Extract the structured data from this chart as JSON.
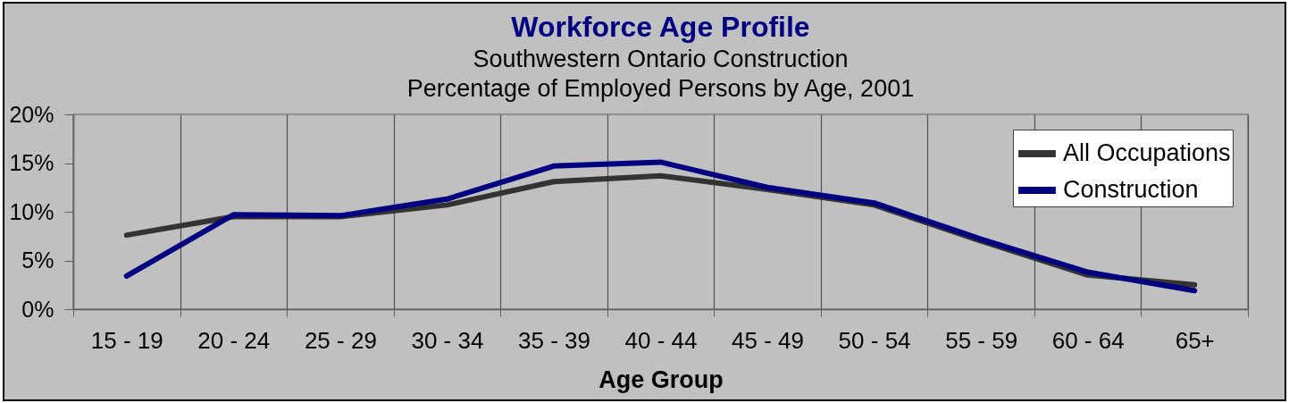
{
  "chart_data": {
    "type": "line",
    "title": "Workforce Age Profile",
    "subtitle": "Southwestern Ontario Construction\nPercentage of Employed Persons by Age, 2001",
    "xlabel": "Age Group",
    "categories": [
      "15 - 19",
      "20 - 24",
      "25 - 29",
      "30 - 34",
      "35 - 39",
      "40 - 44",
      "45 - 49",
      "50 - 54",
      "55 - 59",
      "60 - 64",
      "65+"
    ],
    "series": [
      {
        "name": "All Occupations",
        "color": "#333333",
        "values": [
          7.6,
          9.5,
          9.5,
          10.7,
          13.1,
          13.7,
          12.3,
          10.7,
          7.0,
          3.5,
          2.5
        ]
      },
      {
        "name": "Construction",
        "color": "#000080",
        "values": [
          3.4,
          9.7,
          9.6,
          11.3,
          14.7,
          15.1,
          12.5,
          10.9,
          7.2,
          3.8,
          1.9
        ]
      }
    ],
    "ylim": [
      0,
      20
    ],
    "yticks": [
      {
        "value": 0,
        "label": "0%"
      },
      {
        "value": 5,
        "label": "5%"
      },
      {
        "value": 10,
        "label": "10%"
      },
      {
        "value": 15,
        "label": "15%"
      },
      {
        "value": 20,
        "label": "20%"
      }
    ],
    "grid": "x",
    "legend": "top right",
    "line_style": "solid"
  }
}
